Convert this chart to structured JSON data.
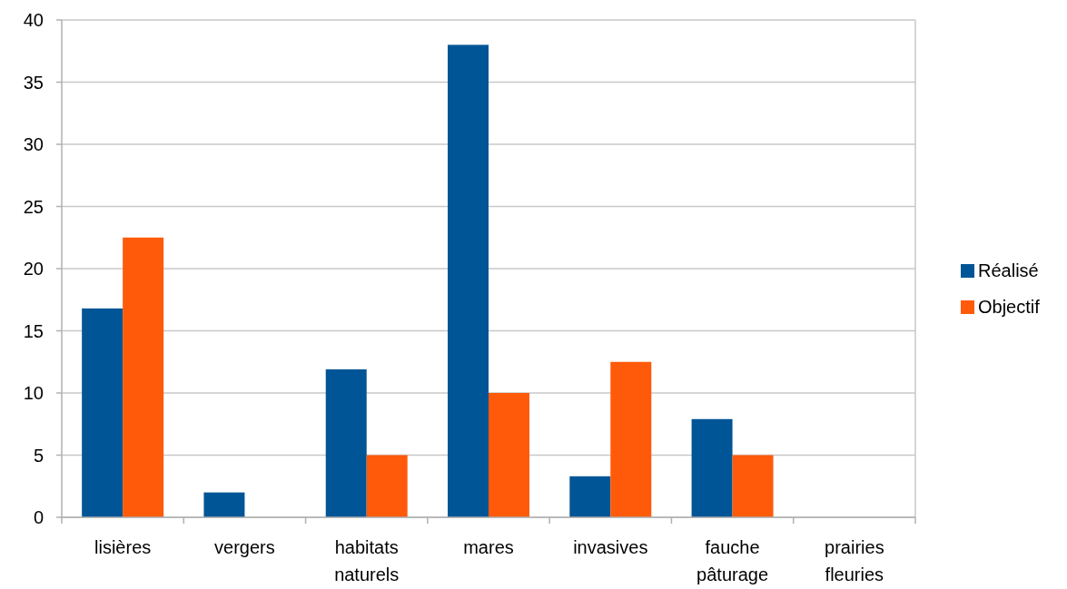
{
  "chart_data": {
    "type": "bar",
    "categories": [
      "lisières",
      "vergers",
      "habitats naturels",
      "mares",
      "invasives",
      "fauche pâturage",
      "prairies fleuries"
    ],
    "series": [
      {
        "name": "Réalisé",
        "color": "#005596",
        "values": [
          16.8,
          2.0,
          11.9,
          38.0,
          3.3,
          7.9,
          0
        ]
      },
      {
        "name": "Objectif",
        "color": "#ff5a0a",
        "values": [
          22.5,
          0,
          5,
          10,
          12.5,
          5,
          0
        ]
      }
    ],
    "ylim": [
      0,
      40
    ],
    "yticks": [
      0,
      5,
      10,
      15,
      20,
      25,
      30,
      35,
      40
    ],
    "grid": "y",
    "legend": "right"
  }
}
